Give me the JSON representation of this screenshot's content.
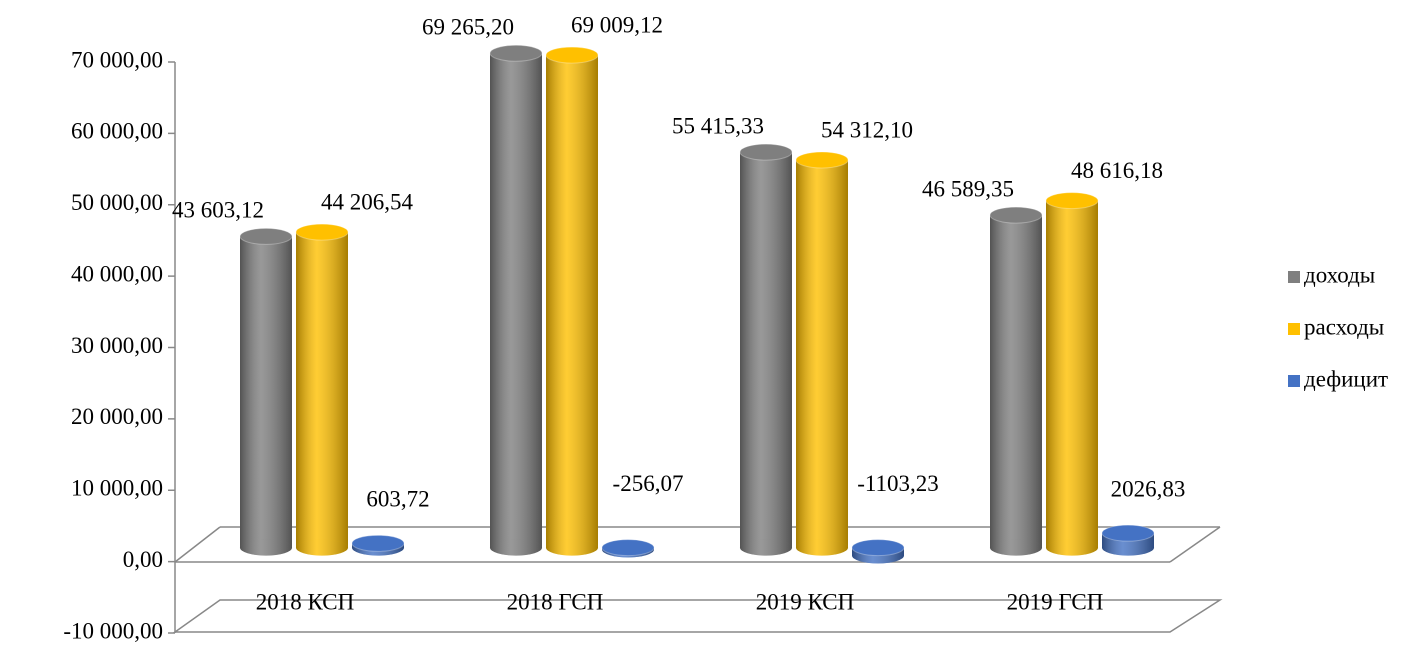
{
  "chart_data": {
    "type": "bar3d",
    "categories": [
      "2018 КСП",
      "2018 ГСП",
      "2019 КСП",
      "2019 ГСП"
    ],
    "series": [
      {
        "name": "доходы",
        "color": "#7f7f7f",
        "values": [
          43603.12,
          69265.2,
          55415.33,
          46589.35
        ],
        "value_labels": [
          "43 603,12",
          "69 265,20",
          "55 415,33",
          "46 589,35"
        ]
      },
      {
        "name": "расходы",
        "color": "#ffc000",
        "values": [
          44206.54,
          69009.12,
          54312.1,
          48616.18
        ],
        "value_labels": [
          "44 206,54",
          "69 009,12",
          "54 312,10",
          "48 616,18"
        ]
      },
      {
        "name": "дефицит",
        "color": "#4472c4",
        "values": [
          603.72,
          -256.07,
          -1103.23,
          2026.83
        ],
        "value_labels": [
          "603,72",
          "-256,07",
          "-1103,23",
          "2026,83"
        ]
      }
    ],
    "ylim": [
      -10000,
      70000
    ],
    "yticks": [
      {
        "value": -10000,
        "label": "-10 000,00"
      },
      {
        "value": 0,
        "label": "0,00"
      },
      {
        "value": 10000,
        "label": "10 000,00"
      },
      {
        "value": 20000,
        "label": "20 000,00"
      },
      {
        "value": 30000,
        "label": "30 000,00"
      },
      {
        "value": 40000,
        "label": "40 000,00"
      },
      {
        "value": 50000,
        "label": "50 000,00"
      },
      {
        "value": 60000,
        "label": "60 000,00"
      },
      {
        "value": 70000,
        "label": "70 000,00"
      }
    ],
    "legend": "right"
  }
}
